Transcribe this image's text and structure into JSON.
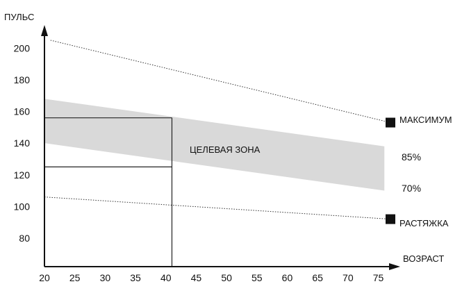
{
  "chart_data": {
    "type": "line",
    "ylabel": "ПУЛЬС",
    "xlabel": "ВОЗРАСТ",
    "xlim": [
      20,
      77
    ],
    "ylim": [
      62,
      212
    ],
    "x_ticks": [
      20,
      25,
      30,
      35,
      40,
      45,
      50,
      55,
      60,
      65,
      70,
      75
    ],
    "y_ticks": [
      80,
      100,
      120,
      140,
      160,
      180,
      200
    ],
    "series": [
      {
        "name": "МАКСИМУМ",
        "style": "dotted",
        "points": [
          [
            21,
            205
          ],
          [
            77,
            153
          ]
        ]
      },
      {
        "name": "РАСТЯЖКА",
        "style": "dotted",
        "points": [
          [
            20,
            106
          ],
          [
            77,
            92
          ]
        ]
      }
    ],
    "band": {
      "label": "ЦЕЛЕВАЯ ЗОНА",
      "upper": {
        "name": "85%",
        "points": [
          [
            20,
            168
          ],
          [
            76,
            138
          ]
        ]
      },
      "lower": {
        "name": "70%",
        "points": [
          [
            20,
            140
          ],
          [
            76,
            110
          ]
        ]
      },
      "color": "#d9d9d9"
    },
    "guides": {
      "age": 41,
      "hr_levels": [
        156,
        125
      ]
    },
    "grid": false
  }
}
